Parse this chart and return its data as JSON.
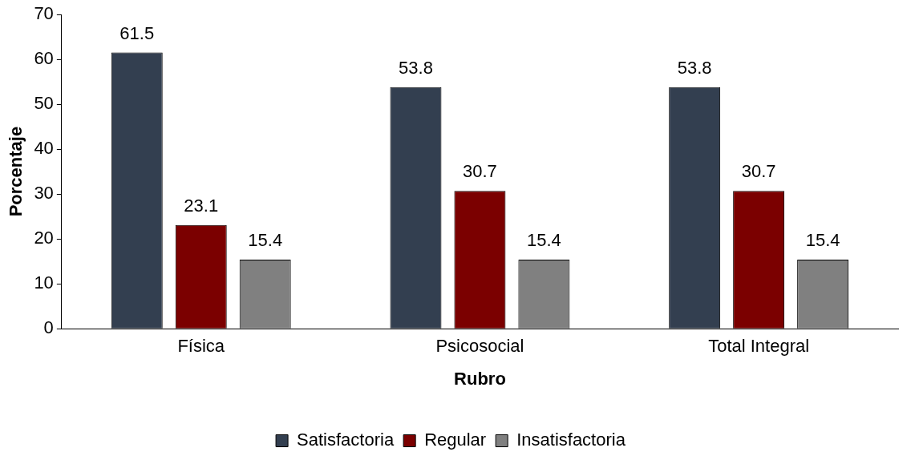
{
  "chart_data": {
    "type": "bar",
    "xlabel": "Rubro",
    "ylabel": "Porcentaje",
    "categories": [
      "Física",
      "Psicosocial",
      "Total Integral"
    ],
    "series": [
      {
        "name": "Satisfactoria",
        "color": "#333f50",
        "values": [
          61.5,
          53.8,
          53.8
        ]
      },
      {
        "name": "Regular",
        "color": "#7b0000",
        "values": [
          23.1,
          30.7,
          30.7
        ]
      },
      {
        "name": "Insatisfactoria",
        "color": "#808080",
        "values": [
          15.4,
          15.4,
          15.4
        ]
      }
    ],
    "ylim": [
      0,
      70
    ],
    "yticks": [
      0,
      10,
      20,
      30,
      40,
      50,
      60,
      70
    ],
    "grid": false,
    "legend": "bottom",
    "data_labels": true
  }
}
